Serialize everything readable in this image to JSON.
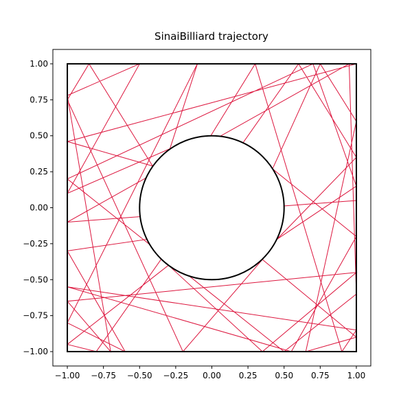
{
  "chart_data": {
    "type": "line",
    "title": "SinaiBilliard trajectory",
    "xlim": [
      -1.1,
      1.1
    ],
    "ylim": [
      -1.1,
      1.1
    ],
    "xticks": [
      {
        "value": -1,
        "label": "−1.00"
      },
      {
        "value": -0.75,
        "label": "−0.75"
      },
      {
        "value": -0.5,
        "label": "−0.50"
      },
      {
        "value": -0.25,
        "label": "−0.25"
      },
      {
        "value": 0,
        "label": "0.00"
      },
      {
        "value": 0.25,
        "label": "0.25"
      },
      {
        "value": 0.5,
        "label": "0.50"
      },
      {
        "value": 0.75,
        "label": "0.75"
      },
      {
        "value": 1,
        "label": "1.00"
      }
    ],
    "yticks": [
      {
        "value": -1,
        "label": "−1.00"
      },
      {
        "value": -0.75,
        "label": "−0.75"
      },
      {
        "value": -0.5,
        "label": "−0.50"
      },
      {
        "value": -0.25,
        "label": "−0.25"
      },
      {
        "value": 0,
        "label": "0.00"
      },
      {
        "value": 0.25,
        "label": "0.25"
      },
      {
        "value": 0.5,
        "label": "0.50"
      },
      {
        "value": 0.75,
        "label": "0.75"
      },
      {
        "value": 1,
        "label": "1.00"
      }
    ],
    "box": {
      "xmin": -1,
      "xmax": 1,
      "ymin": -1,
      "ymax": 1,
      "color": "#000000"
    },
    "obstacle": {
      "cx": 0,
      "cy": 0,
      "r": 0.5,
      "color": "#000000"
    },
    "series": [
      {
        "color": "#dc143c",
        "x": [
          1,
          -1,
          -0.41,
          -0.85,
          -1,
          -0.2,
          0.35,
          1,
          0.65,
          1,
          0.75,
          0.42,
          1,
          0.55,
          -1,
          1,
          0.9,
          0.3,
          -0.45,
          -1,
          -0.6,
          -1,
          -0.1,
          -0.29,
          -1,
          -0.5,
          -1,
          -0.7,
          -1,
          1,
          0.35,
          -0.3,
          -1,
          -0.8,
          0.6,
          1,
          0.45,
          1,
          0.7,
          -1,
          0.5,
          1,
          0.95,
          -1,
          1
        ],
        "y": [
          1,
          0.46,
          0.29,
          1,
          0.75,
          -1,
          -0.36,
          -0.9,
          -1,
          0.6,
          1,
          0.27,
          -0.2,
          -1,
          -0.55,
          -0.85,
          -1,
          1,
          -0.22,
          -0.3,
          -1,
          -0.8,
          1,
          0.41,
          0.1,
          1,
          0.78,
          -1,
          -0.65,
          -0.45,
          -1,
          -0.4,
          -0.95,
          -1,
          1,
          0.35,
          -0.22,
          0.15,
          1,
          0.2,
          -1,
          -0.6,
          1,
          -0.1,
          0.05
        ]
      }
    ]
  }
}
